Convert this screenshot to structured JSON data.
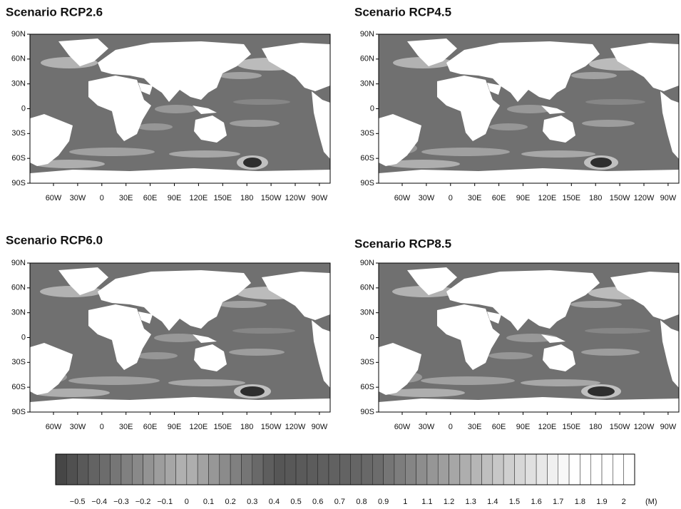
{
  "panels": [
    {
      "title": "Scenario RCP2.6",
      "yticks": [
        "90N",
        "60N",
        "30N",
        "0",
        "30S",
        "60S",
        "90S"
      ],
      "xticks": [
        "60W",
        "30W",
        "0",
        "30E",
        "60E",
        "90E",
        "120E",
        "150E",
        "180",
        "150W",
        "120W",
        "90W"
      ]
    },
    {
      "title": "Scenario RCP4.5",
      "yticks": [
        "90N",
        "60N",
        "30N",
        "0",
        "30S",
        "60S",
        "90S"
      ],
      "xticks": [
        "60W",
        "30W",
        "0",
        "30E",
        "60E",
        "90E",
        "120E",
        "150E",
        "180",
        "150W",
        "120W",
        "90W"
      ]
    },
    {
      "title": "Scenario RCP6.0",
      "yticks": [
        "90N",
        "60N",
        "30N",
        "0",
        "30S",
        "60S",
        "90S"
      ],
      "xticks": [
        "60W",
        "30W",
        "0",
        "30E",
        "60E",
        "90E",
        "120E",
        "150E",
        "180",
        "150W",
        "120W",
        "90W"
      ]
    },
    {
      "title": "Scenario RCP8.5",
      "yticks": [
        "90N",
        "60N",
        "30N",
        "0",
        "30S",
        "60S",
        "90S"
      ],
      "xticks": [
        "60W",
        "30W",
        "0",
        "30E",
        "60E",
        "90E",
        "120E",
        "150E",
        "180",
        "150W",
        "120W",
        "90W"
      ]
    }
  ],
  "colorbar": {
    "labels": [
      "−0.5",
      "−0.4",
      "−0.3",
      "−0.2",
      "−0.1",
      "0",
      "0.1",
      "0.2",
      "0.3",
      "0.4",
      "0.5",
      "0.6",
      "0.7",
      "0.8",
      "0.9",
      "1",
      "1.1",
      "1.2",
      "1.3",
      "1.4",
      "1.5",
      "1.6",
      "1.7",
      "1.8",
      "1.9",
      "2"
    ],
    "unit": "(M)"
  }
}
